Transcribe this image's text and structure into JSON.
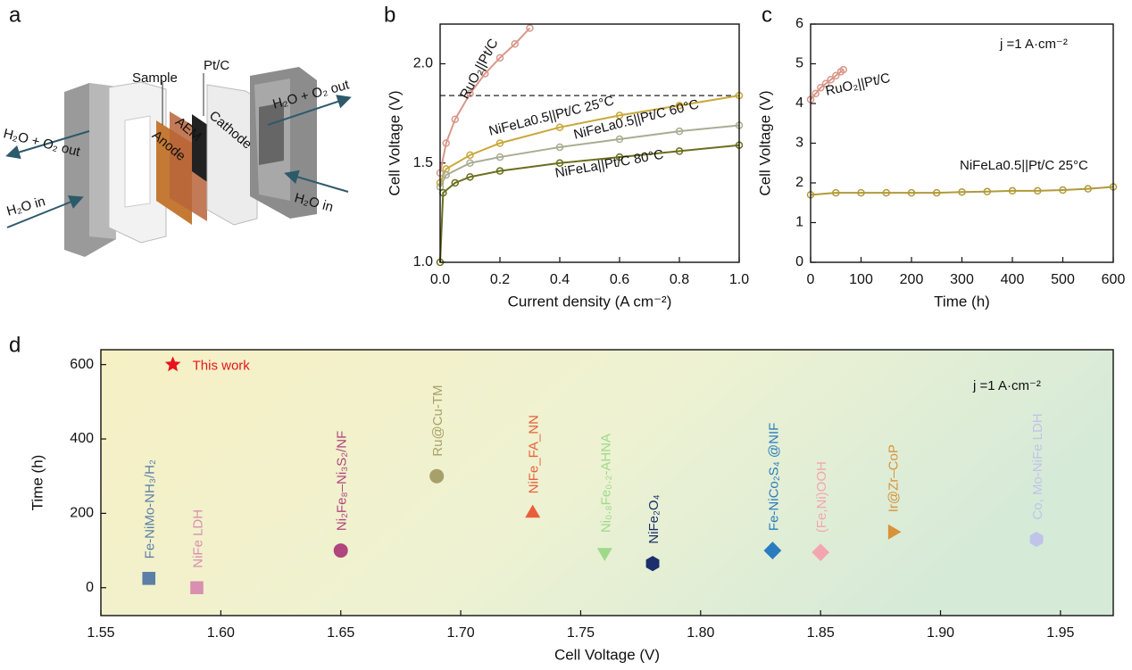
{
  "diagram": {
    "panel_label": "a",
    "labels": [
      "Sample",
      "Pt/C",
      "AEM",
      "Anode",
      "Cathode",
      "H₂O + O₂ out",
      "H₂O in",
      "H₂O + O₂ out",
      "H₂O in"
    ]
  },
  "chart_data": [
    {
      "panel_label": "b",
      "type": "line",
      "x_label": "Current density (A cm⁻²)",
      "y_label": "Cell Voltage (V)",
      "xlim": [
        0,
        1
      ],
      "ylim": [
        1,
        2.2
      ],
      "xticks": [
        {
          "value": 0,
          "label": "0.0"
        },
        0.2,
        0.4,
        0.6,
        0.8,
        {
          "value": 1,
          "label": "1.0"
        }
      ],
      "yticks": [
        {
          "value": 1,
          "label": "1.0"
        },
        1.5,
        {
          "value": 2,
          "label": "2.0"
        }
      ],
      "reference_line": {
        "value": 1.84,
        "style": "dashed"
      },
      "series": [
        {
          "name": "RuO₂||Pt/C",
          "color": "#d9978a",
          "x": [
            0,
            0.02,
            0.05,
            0.1,
            0.15,
            0.2,
            0.25,
            0.3
          ],
          "values": [
            1.45,
            1.6,
            1.72,
            1.85,
            1.95,
            2.03,
            2.1,
            2.18
          ]
        },
        {
          "name": "NiFeLa0.5||Pt/C 25°C",
          "color": "#c8a83a",
          "x": [
            0,
            0.02,
            0.1,
            0.2,
            0.4,
            0.6,
            0.8,
            1
          ],
          "values": [
            1.4,
            1.47,
            1.54,
            1.6,
            1.68,
            1.74,
            1.79,
            1.84
          ]
        },
        {
          "name": "NiFeLa0.5||Pt/C 60°C",
          "color": "#a8ad92",
          "x": [
            0,
            0.02,
            0.1,
            0.2,
            0.4,
            0.6,
            0.8,
            1
          ],
          "values": [
            1.38,
            1.44,
            1.5,
            1.53,
            1.58,
            1.62,
            1.66,
            1.69
          ]
        },
        {
          "name": "NiFeLa||Pt/C 80°C",
          "color": "#6b6e1e",
          "x": [
            0,
            0.01,
            0.05,
            0.1,
            0.2,
            0.4,
            0.6,
            0.8,
            1
          ],
          "values": [
            1,
            1.35,
            1.4,
            1.43,
            1.46,
            1.5,
            1.53,
            1.56,
            1.59
          ]
        }
      ]
    },
    {
      "panel_label": "c",
      "type": "line",
      "x_label": "Time (h)",
      "y_label": "Cell Voltage (V)",
      "xlim": [
        0,
        600
      ],
      "ylim": [
        0,
        6
      ],
      "xticks": [
        0,
        100,
        200,
        300,
        400,
        500,
        600
      ],
      "yticks": [
        0,
        1,
        2,
        3,
        4,
        5,
        6
      ],
      "annotation": "j =1 A·cm⁻²",
      "series": [
        {
          "name": "RuO₂||Pt/C",
          "color": "#d9978a",
          "x": [
            0,
            10,
            20,
            30,
            40,
            50,
            60,
            65
          ],
          "values": [
            4.1,
            4.25,
            4.4,
            4.5,
            4.6,
            4.7,
            4.8,
            4.85
          ]
        },
        {
          "name": "NiFeLa0.5||Pt/C 25°C",
          "color": "#b09a3a",
          "x": [
            0,
            50,
            100,
            150,
            200,
            250,
            300,
            350,
            400,
            450,
            500,
            550,
            600
          ],
          "values": [
            1.7,
            1.75,
            1.75,
            1.75,
            1.75,
            1.75,
            1.77,
            1.78,
            1.8,
            1.8,
            1.82,
            1.85,
            1.9
          ]
        }
      ]
    },
    {
      "panel_label": "d",
      "type": "scatter",
      "x_label": "Cell Voltage (V)",
      "y_label": "Time (h)",
      "xlim": [
        1.55,
        1.972
      ],
      "ylim": [
        -75,
        640
      ],
      "xticks": [
        1.55,
        {
          "value": 1.6,
          "label": "1.60"
        },
        1.65,
        {
          "value": 1.7,
          "label": "1.70"
        },
        1.75,
        {
          "value": 1.8,
          "label": "1.80"
        },
        1.85,
        {
          "value": 1.9,
          "label": "1.90"
        },
        1.95
      ],
      "yticks": [
        0,
        200,
        400,
        600
      ],
      "annotation": "j =1 A·cm⁻²",
      "series": [
        {
          "name": "This work",
          "color": "#e8141c",
          "marker": "star",
          "x": [
            1.58
          ],
          "values": [
            600
          ]
        },
        {
          "name": "Fe-NiMo-NH₃/H₂",
          "color": "#5b7fa6",
          "marker": "square",
          "x": [
            1.57
          ],
          "values": [
            25
          ]
        },
        {
          "name": "NiFe LDH",
          "color": "#d88fb0",
          "marker": "square",
          "x": [
            1.59
          ],
          "values": [
            0
          ]
        },
        {
          "name": "Ni₂Fe₈–Ni₃S₂/NF",
          "color": "#b0457f",
          "marker": "circle",
          "x": [
            1.65
          ],
          "values": [
            100
          ]
        },
        {
          "name": "Ru@Cu-TM",
          "color": "#a8a06a",
          "marker": "circle",
          "x": [
            1.69
          ],
          "values": [
            300
          ]
        },
        {
          "name": "NiFe_FA_NN",
          "color": "#e8603a",
          "marker": "triangle-up",
          "x": [
            1.73
          ],
          "values": [
            200
          ]
        },
        {
          "name": "Ni₀.₈Fe₀.₂-AHNA",
          "color": "#9ed98a",
          "marker": "triangle-down",
          "x": [
            1.76
          ],
          "values": [
            95
          ]
        },
        {
          "name": "NiFe₂O₄",
          "color": "#1a2f6b",
          "marker": "hexagon",
          "x": [
            1.78
          ],
          "values": [
            65
          ]
        },
        {
          "name": "Fe-NiCo₂S₄ @NIF",
          "color": "#2a7cc0",
          "marker": "diamond",
          "x": [
            1.83
          ],
          "values": [
            100
          ]
        },
        {
          "name": "(Fe,Ni)OOH",
          "color": "#f4a6b0",
          "marker": "diamond",
          "x": [
            1.85
          ],
          "values": [
            95
          ]
        },
        {
          "name": "Ir@Zr–CoP",
          "color": "#d8923a",
          "marker": "triangle-right",
          "x": [
            1.88
          ],
          "values": [
            150
          ]
        },
        {
          "name": "Co, Mo-NiFe LDH",
          "color": "#c0c4e8",
          "marker": "hexagon",
          "x": [
            1.94
          ],
          "values": [
            130
          ]
        }
      ]
    }
  ]
}
